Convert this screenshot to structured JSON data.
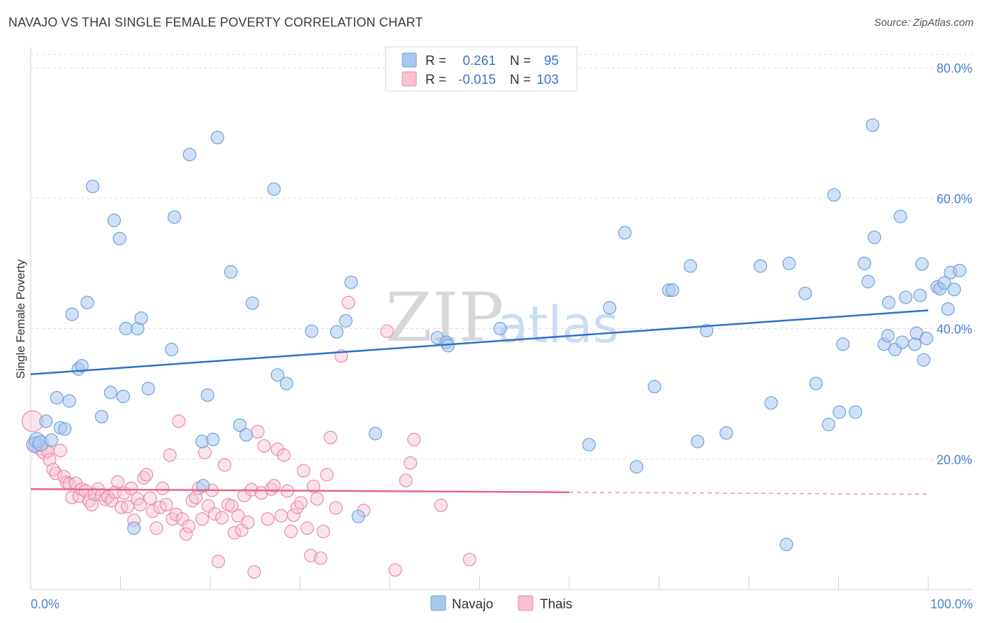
{
  "title": "NAVAJO VS THAI SINGLE FEMALE POVERTY CORRELATION CHART",
  "source": "Source: ZipAtlas.com",
  "watermark": {
    "zip": "ZIP",
    "atlas": "atlas"
  },
  "colors": {
    "navajo_fill": "#a9c8f0",
    "navajo_stroke": "#6f9fdc",
    "navajo_line": "#2f6fcc",
    "thai_fill": "#f7c1d2",
    "thai_stroke": "#e889a8",
    "thai_line": "#e8628f",
    "tick_text": "#4a7fd0",
    "grid": "#dddddd"
  },
  "legend": {
    "rows": [
      {
        "r_label": "R =",
        "r_value": "0.261",
        "n_label": "N =",
        "n_value": "95",
        "series": "navajo"
      },
      {
        "r_label": "R =",
        "r_value": "-0.015",
        "n_label": "N =",
        "n_value": "103",
        "series": "thai"
      }
    ]
  },
  "bottom_legend": [
    {
      "label": "Navajo",
      "series": "navajo"
    },
    {
      "label": "Thais",
      "series": "thai"
    }
  ],
  "chart_data": {
    "type": "scatter",
    "title": "NAVAJO VS THAI SINGLE FEMALE POVERTY CORRELATION CHART",
    "xlabel": "",
    "ylabel": "Single Female Poverty",
    "xlim": [
      0,
      100
    ],
    "ylim": [
      0,
      82
    ],
    "x_tick_labels": [
      {
        "value": 0,
        "label": "0.0%"
      },
      {
        "value": 100,
        "label": "100.0%"
      }
    ],
    "y_tick_labels": [
      {
        "value": 20,
        "label": "20.0%"
      },
      {
        "value": 40,
        "label": "40.0%"
      },
      {
        "value": 60,
        "label": "60.0%"
      },
      {
        "value": 80,
        "label": "80.0%"
      }
    ],
    "grid": true,
    "legend_position": "top-center",
    "series": [
      {
        "name": "Navajo",
        "R": 0.261,
        "N": 95,
        "trend": {
          "x": [
            0,
            100
          ],
          "y": [
            33.0,
            42.8
          ]
        },
        "points": [
          [
            0.4,
            22.2
          ],
          [
            0.7,
            22.9
          ],
          [
            1.1,
            22.4
          ],
          [
            1.7,
            25.8
          ],
          [
            2.3,
            22.9
          ],
          [
            2.9,
            29.4
          ],
          [
            3.3,
            24.8
          ],
          [
            3.8,
            24.6
          ],
          [
            4.3,
            28.9
          ],
          [
            4.6,
            42.2
          ],
          [
            5.3,
            33.8
          ],
          [
            5.7,
            34.3
          ],
          [
            6.3,
            44.0
          ],
          [
            6.9,
            61.8
          ],
          [
            7.9,
            26.5
          ],
          [
            8.9,
            30.2
          ],
          [
            9.3,
            56.6
          ],
          [
            9.9,
            53.8
          ],
          [
            10.3,
            29.6
          ],
          [
            10.6,
            40.0
          ],
          [
            11.5,
            9.4
          ],
          [
            11.9,
            40.0
          ],
          [
            12.3,
            41.6
          ],
          [
            13.1,
            30.8
          ],
          [
            15.7,
            36.8
          ],
          [
            16.0,
            57.1
          ],
          [
            17.7,
            66.7
          ],
          [
            19.1,
            22.7
          ],
          [
            19.2,
            15.9
          ],
          [
            19.7,
            29.8
          ],
          [
            20.3,
            23.0
          ],
          [
            20.8,
            69.3
          ],
          [
            22.3,
            48.7
          ],
          [
            23.3,
            25.2
          ],
          [
            24.0,
            23.7
          ],
          [
            24.7,
            43.9
          ],
          [
            27.1,
            61.4
          ],
          [
            27.5,
            32.9
          ],
          [
            28.5,
            31.6
          ],
          [
            31.3,
            39.6
          ],
          [
            34.1,
            39.5
          ],
          [
            35.1,
            41.2
          ],
          [
            35.7,
            47.1
          ],
          [
            36.5,
            11.2
          ],
          [
            38.4,
            23.9
          ],
          [
            45.3,
            38.6
          ],
          [
            46.3,
            37.9
          ],
          [
            46.5,
            37.4
          ],
          [
            52.3,
            40.0
          ],
          [
            62.2,
            22.2
          ],
          [
            64.5,
            43.2
          ],
          [
            66.2,
            54.7
          ],
          [
            67.5,
            18.8
          ],
          [
            69.5,
            31.1
          ],
          [
            71.1,
            45.9
          ],
          [
            71.5,
            45.9
          ],
          [
            73.5,
            49.6
          ],
          [
            74.3,
            22.7
          ],
          [
            75.3,
            39.7
          ],
          [
            77.5,
            24.0
          ],
          [
            81.3,
            49.6
          ],
          [
            82.5,
            28.6
          ],
          [
            84.2,
            6.9
          ],
          [
            84.5,
            50.0
          ],
          [
            86.3,
            45.4
          ],
          [
            87.5,
            31.6
          ],
          [
            88.9,
            25.3
          ],
          [
            89.5,
            60.5
          ],
          [
            90.1,
            27.2
          ],
          [
            90.5,
            37.6
          ],
          [
            91.9,
            27.2
          ],
          [
            92.9,
            50.0
          ],
          [
            93.3,
            47.2
          ],
          [
            93.8,
            71.2
          ],
          [
            94.0,
            54.0
          ],
          [
            95.1,
            37.6
          ],
          [
            95.5,
            38.9
          ],
          [
            95.6,
            44.0
          ],
          [
            96.3,
            36.8
          ],
          [
            96.9,
            57.2
          ],
          [
            97.1,
            37.9
          ],
          [
            97.5,
            44.8
          ],
          [
            98.5,
            37.6
          ],
          [
            98.7,
            39.3
          ],
          [
            99.1,
            45.1
          ],
          [
            99.3,
            49.9
          ],
          [
            99.5,
            35.2
          ],
          [
            99.8,
            38.5
          ],
          [
            101.0,
            46.4
          ],
          [
            101.3,
            46.1
          ],
          [
            101.8,
            47.0
          ],
          [
            102.2,
            43.0
          ],
          [
            102.5,
            48.6
          ],
          [
            102.9,
            46.0
          ],
          [
            103.5,
            48.9
          ]
        ]
      },
      {
        "name": "Thais",
        "R": -0.015,
        "N": 103,
        "trend": {
          "x": [
            0,
            60
          ],
          "y": [
            15.4,
            14.9
          ]
        },
        "trend_dashed": {
          "x": [
            60,
            100
          ],
          "y": [
            14.9,
            14.6
          ]
        },
        "points": [
          [
            0.2,
            25.8
          ],
          [
            0.6,
            22.2
          ],
          [
            1.0,
            21.8
          ],
          [
            1.5,
            21.2
          ],
          [
            1.9,
            21.2
          ],
          [
            2.1,
            19.9
          ],
          [
            2.5,
            18.4
          ],
          [
            2.8,
            17.8
          ],
          [
            3.3,
            21.3
          ],
          [
            3.7,
            17.3
          ],
          [
            4.0,
            16.4
          ],
          [
            4.3,
            16.2
          ],
          [
            4.6,
            14.1
          ],
          [
            5.0,
            16.3
          ],
          [
            5.4,
            14.3
          ],
          [
            5.7,
            15.4
          ],
          [
            6.1,
            15.1
          ],
          [
            6.5,
            13.6
          ],
          [
            6.8,
            13.0
          ],
          [
            7.1,
            14.6
          ],
          [
            7.5,
            15.4
          ],
          [
            7.9,
            14.5
          ],
          [
            8.3,
            13.8
          ],
          [
            8.6,
            14.2
          ],
          [
            9.0,
            13.6
          ],
          [
            9.4,
            14.9
          ],
          [
            9.7,
            16.5
          ],
          [
            10.1,
            12.6
          ],
          [
            10.4,
            14.8
          ],
          [
            10.8,
            12.7
          ],
          [
            11.2,
            15.5
          ],
          [
            11.5,
            10.6
          ],
          [
            11.9,
            13.9
          ],
          [
            12.2,
            13.0
          ],
          [
            12.6,
            17.1
          ],
          [
            12.9,
            17.6
          ],
          [
            13.3,
            14.0
          ],
          [
            13.6,
            12.0
          ],
          [
            14.0,
            9.4
          ],
          [
            14.4,
            12.6
          ],
          [
            14.7,
            15.5
          ],
          [
            15.1,
            13.0
          ],
          [
            15.5,
            20.6
          ],
          [
            15.8,
            10.8
          ],
          [
            16.2,
            11.5
          ],
          [
            16.5,
            25.8
          ],
          [
            16.9,
            10.8
          ],
          [
            17.3,
            8.5
          ],
          [
            17.6,
            9.7
          ],
          [
            18.0,
            13.6
          ],
          [
            18.4,
            14.1
          ],
          [
            18.7,
            15.5
          ],
          [
            19.1,
            10.8
          ],
          [
            19.4,
            21.0
          ],
          [
            19.8,
            12.8
          ],
          [
            20.2,
            15.2
          ],
          [
            20.5,
            11.6
          ],
          [
            20.9,
            4.3
          ],
          [
            21.3,
            11.0
          ],
          [
            21.6,
            19.1
          ],
          [
            22.0,
            13.0
          ],
          [
            22.4,
            12.8
          ],
          [
            22.7,
            8.7
          ],
          [
            23.1,
            11.3
          ],
          [
            23.5,
            9.1
          ],
          [
            23.8,
            14.4
          ],
          [
            24.2,
            10.3
          ],
          [
            24.6,
            15.3
          ],
          [
            24.9,
            2.7
          ],
          [
            25.3,
            24.2
          ],
          [
            25.7,
            14.8
          ],
          [
            26.0,
            22.0
          ],
          [
            26.4,
            10.8
          ],
          [
            26.8,
            15.4
          ],
          [
            27.1,
            15.9
          ],
          [
            27.5,
            21.5
          ],
          [
            27.9,
            11.3
          ],
          [
            28.2,
            20.6
          ],
          [
            28.6,
            15.1
          ],
          [
            29.0,
            8.9
          ],
          [
            29.3,
            11.4
          ],
          [
            29.7,
            12.6
          ],
          [
            30.1,
            13.3
          ],
          [
            30.4,
            18.2
          ],
          [
            30.8,
            9.4
          ],
          [
            31.2,
            5.2
          ],
          [
            31.5,
            15.8
          ],
          [
            31.9,
            13.9
          ],
          [
            32.3,
            4.8
          ],
          [
            32.6,
            8.9
          ],
          [
            33.0,
            17.6
          ],
          [
            33.4,
            23.3
          ],
          [
            34.0,
            12.5
          ],
          [
            34.6,
            35.8
          ],
          [
            35.4,
            44.0
          ],
          [
            37.1,
            12.1
          ],
          [
            39.7,
            39.6
          ],
          [
            40.6,
            3.0
          ],
          [
            41.8,
            16.7
          ],
          [
            42.3,
            19.4
          ],
          [
            42.7,
            23.0
          ],
          [
            45.7,
            12.9
          ],
          [
            48.9,
            4.6
          ]
        ]
      }
    ]
  }
}
